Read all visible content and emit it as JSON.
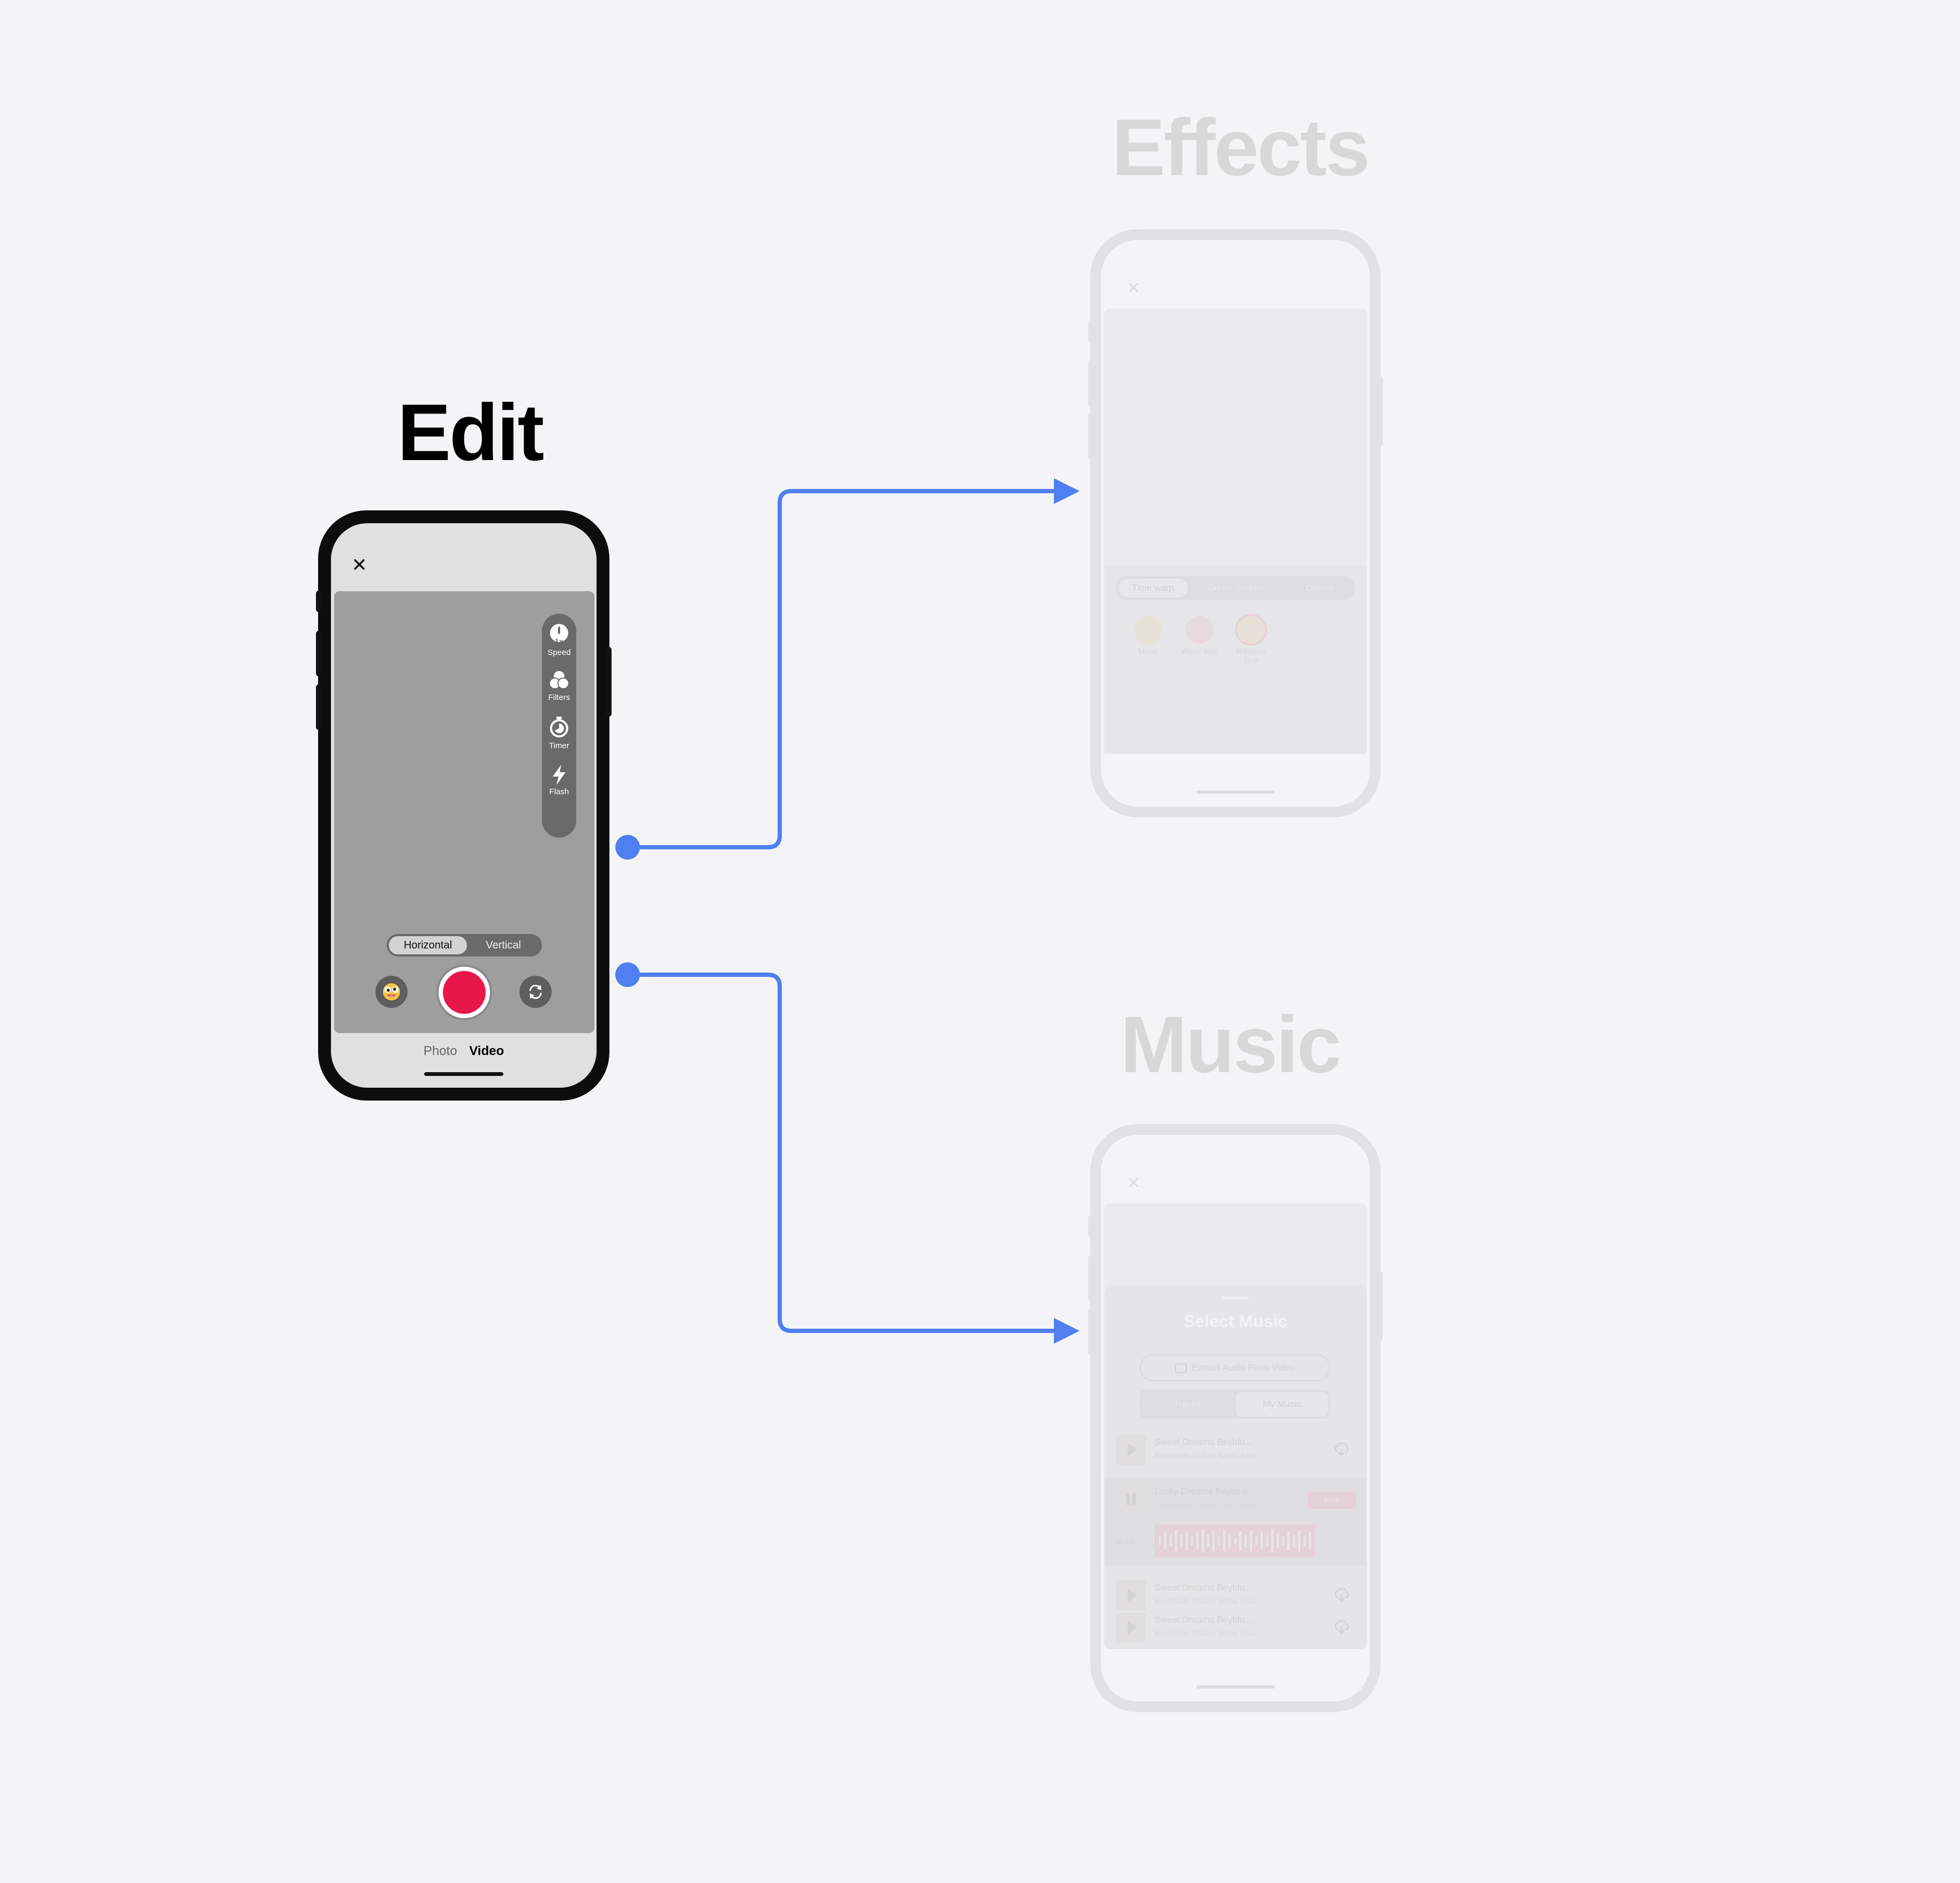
{
  "titles": {
    "edit": "Edit",
    "effects": "Effects",
    "music": "Music"
  },
  "colors": {
    "background": "#f4f4f7",
    "connector": "#4f7ff0",
    "record": "#e8174a",
    "phone_frame": "#0d0d0d"
  },
  "edit_screen": {
    "close_icon": "close-icon",
    "tools": [
      {
        "icon": "speed-icon",
        "badge": "1x",
        "label": "Speed"
      },
      {
        "icon": "filters-icon",
        "label": "Filters"
      },
      {
        "icon": "timer-icon",
        "label": "Timer"
      },
      {
        "icon": "flash-icon",
        "label": "Flash"
      }
    ],
    "orientation": {
      "options": [
        "Horizontal",
        "Vertical"
      ],
      "selected": "Horizontal"
    },
    "controls": {
      "left": "effects-emoji-icon",
      "center": "record-button",
      "right": "flip-camera-icon"
    },
    "modes": {
      "options": [
        "Photo",
        "Video"
      ],
      "selected": "Video"
    }
  },
  "effects_screen": {
    "tabs": [
      "Time warp",
      "Green Screen",
      "Others"
    ],
    "selected_tab": "Time warp",
    "effects": [
      {
        "icon": "emoji-icon",
        "label": "Music"
      },
      {
        "icon": "emoji-icon",
        "label": "Water filter"
      },
      {
        "icon": "emoji-icon",
        "label": "Rainbow Line"
      }
    ]
  },
  "music_screen": {
    "title": "Select Music",
    "extract_button": "Extract Audio From Video",
    "tabs": [
      "Tracks",
      "My Music"
    ],
    "selected_tab": "My Music",
    "tracks": [
      {
        "title": "Sweet Dreams Beyblu...",
        "subtitle": "Beachside, Cuban Salsa, Asia",
        "state": "play"
      },
      {
        "title": "Lucky Dreams Beyblue",
        "subtitle": "Beachside, Cuban Salsa, Asia",
        "state": "pause",
        "action": "Use",
        "time": "00:00"
      },
      {
        "title": "Sweet Dreams Beyblu...",
        "subtitle": "Beachside, Cuban Salsa, Asia",
        "state": "play"
      },
      {
        "title": "Sweet Dreams Beyblu...",
        "subtitle": "Beachside, Cuban Salsa, Asia",
        "state": "play"
      }
    ]
  }
}
